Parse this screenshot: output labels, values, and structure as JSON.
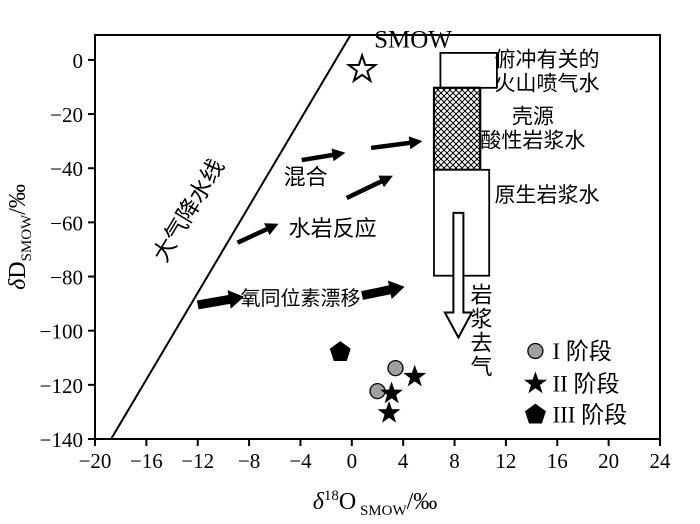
{
  "chart_data": {
    "type": "scatter",
    "title": "",
    "xlabel": {
      "sym": "δ",
      "sup": "18",
      "main": "O",
      "sub": "SMOW",
      "suffix": "/‰"
    },
    "ylabel": {
      "sym": "δ",
      "main": "D",
      "sub": "SMOW",
      "suffix": "/‰"
    },
    "xlim": [
      -20,
      24
    ],
    "ylim": [
      -140,
      9.2
    ],
    "xticks": [
      -20,
      -16,
      -12,
      -8,
      -4,
      0,
      4,
      8,
      12,
      16,
      20,
      24
    ],
    "yticks": [
      0,
      -20,
      -40,
      -60,
      -80,
      -100,
      -120,
      -140
    ],
    "grid": false,
    "meteoric_line": {
      "label": "大气降水线",
      "points": [
        [
          -18.75,
          -140
        ],
        [
          -0.1,
          9.2
        ]
      ],
      "label_x": -12.2,
      "label_y": -57,
      "label_rotate": -59
    },
    "smow_marker": {
      "label": "SMOW",
      "x": 0.8,
      "y": -3.5
    },
    "field_boxes": [
      {
        "id": "subduction-volcanic-gas-water",
        "x0": 6.9,
        "x1": 11.3,
        "y0": -10.3,
        "y1": 2.6,
        "hatch": false,
        "label_lines": [
          "俯冲有关的",
          "火山喷气水"
        ],
        "label_x": 15.2,
        "label_y": -2.5
      },
      {
        "id": "crustal-acidic-magmatic-water",
        "x0": 6.4,
        "x1": 10.0,
        "y0": -40.6,
        "y1": -10.3,
        "hatch": true,
        "label_lines": [
          "壳源",
          "酸性岩浆水"
        ],
        "label_x": 14.1,
        "label_y": -23.5
      },
      {
        "id": "primary-magmatic-water",
        "x0": 6.4,
        "x1": 10.7,
        "y0": -79.7,
        "y1": -40.6,
        "hatch": false,
        "label_lines": [
          "原生岩浆水"
        ],
        "label_x": 15.2,
        "label_y": -52.5
      }
    ],
    "process_arrows": [
      {
        "x1": -3.9,
        "y1": -37.0,
        "x2": -0.5,
        "y2": -34.3,
        "weight": "medium"
      },
      {
        "x1": 1.5,
        "y1": -32.5,
        "x2": 5.5,
        "y2": -30.0,
        "weight": "medium"
      },
      {
        "x1": -0.4,
        "y1": -51.0,
        "x2": 3.2,
        "y2": -42.8,
        "weight": "medium"
      },
      {
        "x1": -8.9,
        "y1": -67.5,
        "x2": -5.7,
        "y2": -60.5,
        "weight": "medium"
      },
      {
        "x1": -12.0,
        "y1": -90.5,
        "x2": -8.4,
        "y2": -87.5,
        "weight": "thick"
      },
      {
        "x1": 0.8,
        "y1": -87.0,
        "x2": 4.1,
        "y2": -83.8,
        "weight": "thick"
      }
    ],
    "degas_arrow": {
      "label": "岩浆去气",
      "x": 8.3,
      "y_start": -56.5,
      "y_end": -102.5,
      "label_x": 10.1,
      "label_y": -89.5
    },
    "annotations": [
      {
        "text": "混合",
        "x": -3.6,
        "y": -46,
        "size": 22
      },
      {
        "text": "水岩反应",
        "x": -1.5,
        "y": -65,
        "size": 22
      },
      {
        "text": "氧同位素漂移",
        "x": -4.0,
        "y": -90.5,
        "size": 20
      }
    ],
    "series": [
      {
        "name": "I 阶段",
        "marker": "circle",
        "color": "#a0a0a0",
        "points": [
          [
            3.4,
            -113.8
          ],
          [
            2.0,
            -122.3
          ]
        ]
      },
      {
        "name": "II 阶段",
        "marker": "star",
        "color": "#000000",
        "points": [
          [
            4.9,
            -117.0
          ],
          [
            3.1,
            -123.2
          ],
          [
            2.9,
            -130.4
          ]
        ]
      },
      {
        "name": "III 阶段",
        "marker": "pentagon",
        "color": "#000000",
        "points": [
          [
            -0.9,
            -107.9
          ]
        ]
      }
    ],
    "legend": {
      "x": 14.3,
      "items": [
        {
          "marker": "circle",
          "label": "I 阶段",
          "y": -107.5
        },
        {
          "marker": "star",
          "label": "II 阶段",
          "y": -119.5
        },
        {
          "marker": "pentagon",
          "label": "III 阶段",
          "y": -131.0
        }
      ]
    }
  },
  "colors": {
    "ink": "#000000",
    "paper": "#ffffff",
    "stage1_fill": "#a0a0a0"
  }
}
